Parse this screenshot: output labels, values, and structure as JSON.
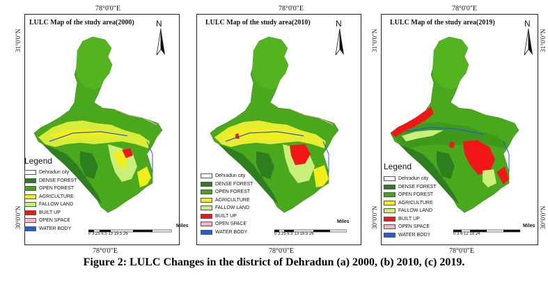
{
  "coords": {
    "top": "78°0'0\"E",
    "bottom": "78°0'0\"E",
    "left_top": "31°0'0\"N",
    "left_bottom": "30°0'0\"N",
    "right_top": "31°0'0\"N",
    "right_bottom": "30°0'0\"N"
  },
  "panels": [
    {
      "title": "LULC Map of the study area(2000)",
      "year": 2000
    },
    {
      "title": "LULC Map of the study area(2010)",
      "year": 2010
    },
    {
      "title": "LULC Map of the study area(2019)",
      "year": 2019
    }
  ],
  "legend": {
    "title": "Legend",
    "items": [
      {
        "label": "Dehradun city",
        "color": "#ffffff"
      },
      {
        "label": "DENSE FOREST",
        "color": "#2e7d1e"
      },
      {
        "label": "OPEN FOREST",
        "color": "#46a619"
      },
      {
        "label": "AGRICULTURE",
        "color": "#f2ee1c"
      },
      {
        "label": "FALLOW LAND",
        "color": "#c9f07a"
      },
      {
        "label": "BUILT UP",
        "color": "#f21616"
      },
      {
        "label": "OPEN SPACE",
        "color": "#f4b6c6"
      },
      {
        "label": "WATER BODY",
        "color": "#1f5fd8"
      }
    ]
  },
  "scales": [
    {
      "ticks": "0 3.25 6.5      13    19.5   26",
      "unit": "Miles"
    },
    {
      "ticks": "0 3.25 6.5      13    19.5   26",
      "unit": "Miles"
    },
    {
      "ticks": "0   3   6      12     18    24",
      "unit": "Miles"
    }
  ],
  "north_label": "N",
  "caption": "Figure 2: LULC Changes in the district of Dehradun (a) 2000, (b) 2010, (c) 2019."
}
